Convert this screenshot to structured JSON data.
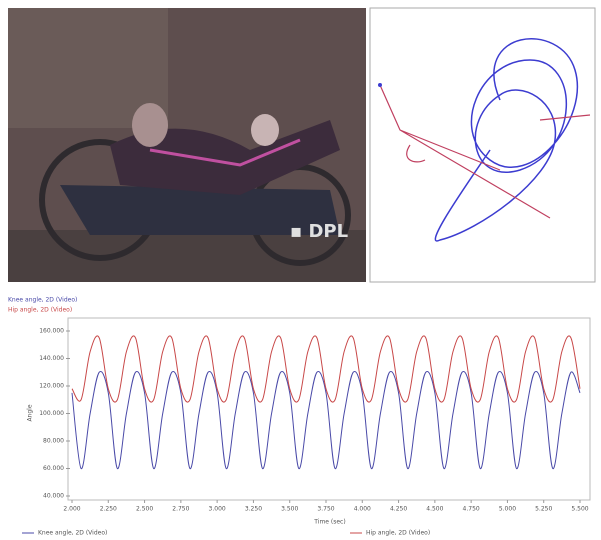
{
  "chart_data": {
    "type": "line",
    "x_label": "Time (sec)",
    "y_label": "Angle",
    "x": [
      2,
      2.0625,
      2.125,
      2.1875,
      2.25,
      2.3125,
      2.375,
      2.4375,
      2.5,
      2.5625,
      2.625,
      2.6875,
      2.75,
      2.8125,
      2.875,
      2.9375,
      3,
      3.0625,
      3.125,
      3.1875,
      3.25,
      3.3125,
      3.375,
      3.4375,
      3.5,
      3.5625,
      3.625,
      3.6875,
      3.75,
      3.8125,
      3.875,
      3.9375,
      4,
      4.0625,
      4.125,
      4.1875,
      4.25,
      4.3125,
      4.375,
      4.4375,
      4.5,
      4.5625,
      4.625,
      4.6875,
      4.75,
      4.8125,
      4.875,
      4.9375,
      5,
      5.0625,
      5.125,
      5.1875,
      5.25,
      5.3125,
      5.375,
      5.4375,
      5.5
    ],
    "series": [
      {
        "name": "Knee angle, 2D (Video)",
        "color": "#4a4aa8",
        "values": [
          115,
          60,
          100,
          130,
          115,
          60,
          100,
          130,
          115,
          60,
          100,
          130,
          115,
          60,
          100,
          130,
          115,
          60,
          100,
          130,
          115,
          60,
          100,
          130,
          115,
          60,
          100,
          130,
          115,
          60,
          100,
          130,
          115,
          60,
          100,
          130,
          115,
          60,
          100,
          130,
          115,
          60,
          100,
          130,
          115,
          60,
          100,
          130,
          115,
          60,
          100,
          130,
          115,
          60,
          100,
          130,
          115
        ]
      },
      {
        "name": "Hip angle, 2D (Video)",
        "color": "#c84848",
        "values": [
          118,
          110,
          145,
          155,
          118,
          110,
          145,
          155,
          118,
          110,
          145,
          155,
          118,
          110,
          145,
          155,
          118,
          110,
          145,
          155,
          118,
          110,
          145,
          155,
          118,
          110,
          145,
          155,
          118,
          110,
          145,
          155,
          118,
          110,
          145,
          155,
          118,
          110,
          145,
          155,
          118,
          110,
          145,
          155,
          118,
          110,
          145,
          155,
          118,
          110,
          145,
          155,
          118,
          110,
          145,
          155,
          118
        ]
      }
    ],
    "xlim": [
      2,
      5.5
    ],
    "xticks": [
      {
        "value": 2,
        "label": "2.000"
      },
      {
        "value": 2.25,
        "label": "2.250"
      },
      {
        "value": 2.5,
        "label": "2.500"
      },
      {
        "value": 2.75,
        "label": "2.750"
      },
      {
        "value": 3,
        "label": "3.000"
      },
      {
        "value": 3.25,
        "label": "3.250"
      },
      {
        "value": 3.5,
        "label": "3.500"
      },
      {
        "value": 3.75,
        "label": "3.750"
      },
      {
        "value": 4,
        "label": "4.000"
      },
      {
        "value": 4.25,
        "label": "4.250"
      },
      {
        "value": 4.5,
        "label": "4.500"
      },
      {
        "value": 4.75,
        "label": "4.750"
      },
      {
        "value": 5,
        "label": "5.000"
      },
      {
        "value": 5.25,
        "label": "5.250"
      },
      {
        "value": 5.5,
        "label": "5.500"
      }
    ],
    "ylim": [
      40,
      160
    ],
    "yticks": [
      {
        "value": 40,
        "label": "40.000"
      },
      {
        "value": 60,
        "label": "60.000"
      },
      {
        "value": 80,
        "label": "80.000"
      },
      {
        "value": 100,
        "label": "100.000"
      },
      {
        "value": 120,
        "label": "120.000"
      },
      {
        "value": 140,
        "label": "140.000"
      },
      {
        "value": 160,
        "label": "160.000"
      }
    ],
    "grid": false
  }
}
